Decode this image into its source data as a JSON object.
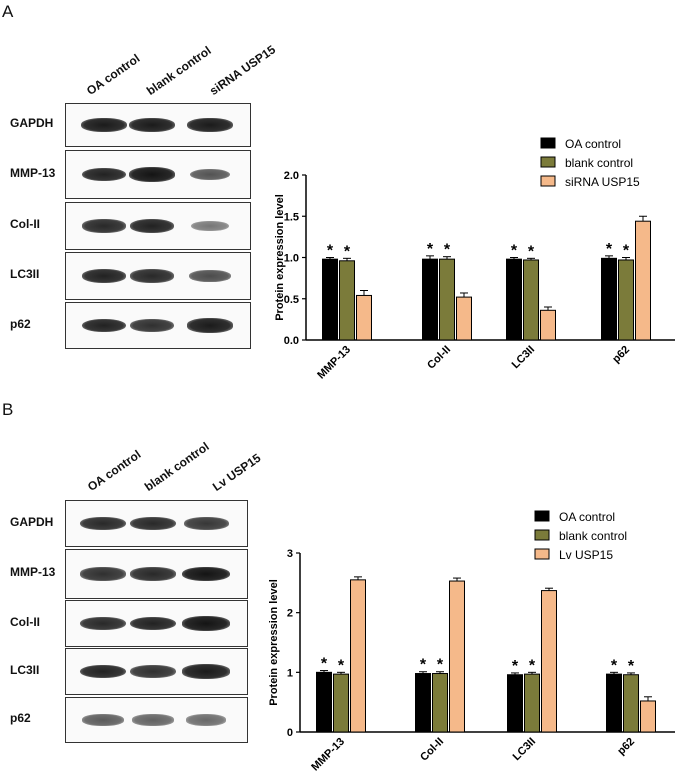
{
  "figure": {
    "panels": [
      {
        "letter": "A",
        "lanes": [
          "OA control",
          "blank control",
          "siRNA USP15"
        ],
        "blot_rows": [
          "GAPDH",
          "MMP-13",
          "Col-II",
          "LC3II",
          "p62"
        ],
        "band_intensity": [
          [
            0.95,
            0.95,
            0.95
          ],
          [
            0.9,
            1.0,
            0.55
          ],
          [
            0.85,
            0.9,
            0.3
          ],
          [
            0.9,
            0.85,
            0.6
          ],
          [
            0.9,
            0.8,
            0.95
          ]
        ]
      },
      {
        "letter": "B",
        "lanes": [
          "OA control",
          "blank control",
          "Lv USP15"
        ],
        "blot_rows": [
          "GAPDH",
          "MMP-13",
          "Col-II",
          "LC3II",
          "p62"
        ],
        "band_intensity": [
          [
            0.85,
            0.85,
            0.75
          ],
          [
            0.8,
            0.85,
            1.0
          ],
          [
            0.85,
            0.9,
            1.0
          ],
          [
            0.9,
            0.8,
            0.95
          ],
          [
            0.5,
            0.45,
            0.4
          ]
        ]
      }
    ]
  },
  "chart_data": [
    {
      "type": "bar",
      "title": "",
      "xlabel": "",
      "ylabel": "Protein expression level",
      "ylim": [
        0,
        2.0
      ],
      "yticks": [
        "0.0",
        "0.5",
        "1.0",
        "1.5",
        "2.0"
      ],
      "ytick_values": [
        0,
        0.5,
        1.0,
        1.5,
        2.0
      ],
      "categories": [
        "MMP-13",
        "Col-II",
        "LC3II",
        "p62"
      ],
      "legend_position": "top-right",
      "significance_marker": "*",
      "series": [
        {
          "name": "OA control",
          "color": "#000000",
          "values": [
            0.98,
            0.98,
            0.98,
            0.99
          ],
          "errors": [
            0.02,
            0.04,
            0.02,
            0.03
          ],
          "significant": [
            true,
            true,
            true,
            true
          ]
        },
        {
          "name": "blank control",
          "color": "#7b7b3a",
          "values": [
            0.96,
            0.98,
            0.97,
            0.97
          ],
          "errors": [
            0.03,
            0.03,
            0.02,
            0.03
          ],
          "significant": [
            true,
            true,
            true,
            true
          ]
        },
        {
          "name": "siRNA USP15",
          "color": "#f5b98a",
          "values": [
            0.54,
            0.52,
            0.36,
            1.44
          ],
          "errors": [
            0.06,
            0.05,
            0.04,
            0.06
          ],
          "significant": [
            false,
            false,
            false,
            false
          ]
        }
      ]
    },
    {
      "type": "bar",
      "title": "",
      "xlabel": "",
      "ylabel": "Protein expression level",
      "ylim": [
        0,
        3
      ],
      "yticks": [
        "0",
        "1",
        "2",
        "3"
      ],
      "ytick_values": [
        0,
        1,
        2,
        3
      ],
      "categories": [
        "MMP-13",
        "Col-II",
        "LC3II",
        "p62"
      ],
      "legend_position": "top-right",
      "significance_marker": "*",
      "series": [
        {
          "name": "OA control",
          "color": "#000000",
          "values": [
            1.0,
            0.98,
            0.96,
            0.97
          ],
          "errors": [
            0.03,
            0.03,
            0.03,
            0.03
          ],
          "significant": [
            true,
            true,
            true,
            true
          ]
        },
        {
          "name": "blank control",
          "color": "#7b7b3a",
          "values": [
            0.97,
            0.98,
            0.97,
            0.96
          ],
          "errors": [
            0.03,
            0.03,
            0.03,
            0.03
          ],
          "significant": [
            true,
            true,
            true,
            true
          ]
        },
        {
          "name": "Lv USP15",
          "color": "#f5b98a",
          "values": [
            2.55,
            2.53,
            2.37,
            0.52
          ],
          "errors": [
            0.05,
            0.05,
            0.04,
            0.07
          ],
          "significant": [
            false,
            false,
            false,
            false
          ]
        }
      ]
    }
  ]
}
